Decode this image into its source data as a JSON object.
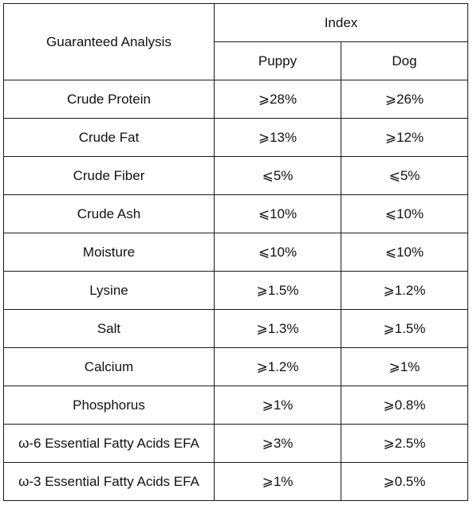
{
  "header": {
    "analysis_label": "Guaranteed Analysis",
    "index_label": "Index",
    "columns": [
      "Puppy",
      "Dog"
    ]
  },
  "rows": [
    {
      "name": "Crude Protein",
      "puppy": "⩾28%",
      "dog": "⩾26%"
    },
    {
      "name": "Crude Fat",
      "puppy": "⩾13%",
      "dog": "⩾12%"
    },
    {
      "name": "Crude Fiber",
      "puppy": "⩽5%",
      "dog": "⩽5%"
    },
    {
      "name": "Crude Ash",
      "puppy": "⩽10%",
      "dog": "⩽10%"
    },
    {
      "name": "Moisture",
      "puppy": "⩽10%",
      "dog": "⩽10%"
    },
    {
      "name": "Lysine",
      "puppy": "⩾1.5%",
      "dog": "⩾1.2%"
    },
    {
      "name": "Salt",
      "puppy": "⩾1.3%",
      "dog": "⩾1.5%"
    },
    {
      "name": "Calcium",
      "puppy": "⩾1.2%",
      "dog": "⩾1%"
    },
    {
      "name": "Phosphorus",
      "puppy": "⩾1%",
      "dog": "⩾0.8%"
    },
    {
      "name": "ω-6 Essential Fatty Acids EFA",
      "puppy": "⩾3%",
      "dog": "⩾2.5%"
    },
    {
      "name": "ω-3 Essential Fatty Acids EFA",
      "puppy": "⩾1%",
      "dog": "⩾0.5%"
    }
  ]
}
